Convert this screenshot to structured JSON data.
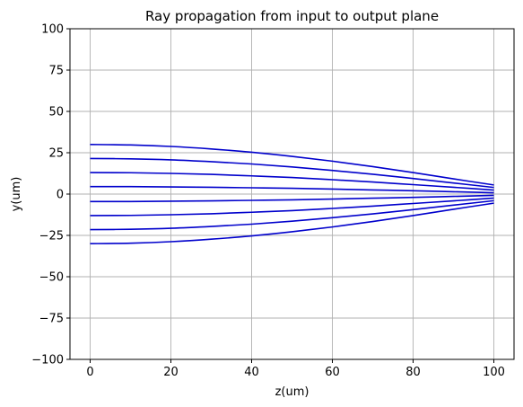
{
  "chart_data": {
    "type": "line",
    "title": "Ray propagation from input to output plane",
    "xlabel": "z(um)",
    "ylabel": "y(um)",
    "xlim": [
      -5,
      105
    ],
    "ylim": [
      -100,
      100
    ],
    "x_ticks": [
      0,
      20,
      40,
      60,
      80,
      100
    ],
    "y_ticks": [
      -100,
      -75,
      -50,
      -25,
      0,
      25,
      50,
      75,
      100
    ],
    "x_tick_labels": [
      "0",
      "20",
      "40",
      "60",
      "80",
      "100"
    ],
    "y_tick_labels": [
      "−100",
      "−75",
      "−50",
      "−25",
      "0",
      "25",
      "50",
      "75",
      "100"
    ],
    "grid": true,
    "line_color": "#0000cc",
    "grid_color": "#b0b0b0",
    "x": [
      0,
      10,
      20,
      30,
      40,
      50,
      60,
      70,
      80,
      90,
      100
    ],
    "series": [
      {
        "values": [
          30.0,
          29.7,
          28.8,
          27.3,
          25.3,
          22.8,
          19.9,
          16.6,
          13.0,
          9.2,
          5.5
        ]
      },
      {
        "values": [
          21.5,
          21.3,
          20.7,
          19.6,
          18.2,
          16.4,
          14.3,
          12.0,
          9.4,
          6.7,
          4.0
        ]
      },
      {
        "values": [
          13.0,
          12.9,
          12.5,
          11.9,
          11.0,
          10.0,
          8.7,
          7.3,
          5.7,
          4.1,
          2.4
        ]
      },
      {
        "values": [
          4.5,
          4.5,
          4.3,
          4.1,
          3.8,
          3.5,
          3.0,
          2.5,
          2.0,
          1.4,
          0.8
        ]
      },
      {
        "values": [
          -4.5,
          -4.5,
          -4.3,
          -4.1,
          -3.8,
          -3.5,
          -3.0,
          -2.5,
          -2.0,
          -1.4,
          -0.8
        ]
      },
      {
        "values": [
          -13.0,
          -12.9,
          -12.5,
          -11.9,
          -11.0,
          -10.0,
          -8.7,
          -7.3,
          -5.7,
          -4.1,
          -2.4
        ]
      },
      {
        "values": [
          -21.5,
          -21.3,
          -20.7,
          -19.6,
          -18.2,
          -16.4,
          -14.3,
          -12.0,
          -9.4,
          -6.7,
          -4.0
        ]
      },
      {
        "values": [
          -30.0,
          -29.7,
          -28.8,
          -27.3,
          -25.3,
          -22.8,
          -19.9,
          -16.6,
          -13.0,
          -9.2,
          -5.5
        ]
      }
    ]
  }
}
